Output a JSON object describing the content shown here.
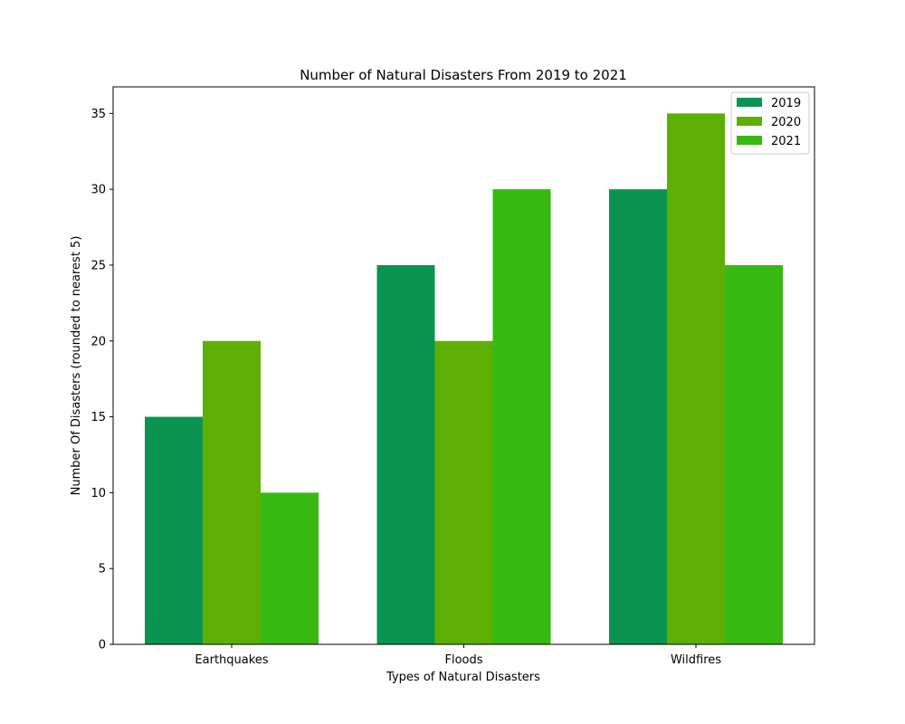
{
  "chart_data": {
    "type": "bar",
    "title": "Number of Natural Disasters From 2019 to 2021",
    "xlabel": "Types of Natural Disasters",
    "ylabel": "Number Of Disasters (rounded to nearest 5)",
    "categories": [
      "Earthquakes",
      "Floods",
      "Wildfires"
    ],
    "series": [
      {
        "name": "2019",
        "values": [
          15,
          25,
          30
        ],
        "color": "#0a9450"
      },
      {
        "name": "2020",
        "values": [
          20,
          20,
          35
        ],
        "color": "#5eaf03"
      },
      {
        "name": "2021",
        "values": [
          10,
          30,
          25
        ],
        "color": "#36b911"
      }
    ],
    "ylim": [
      0,
      36.75
    ],
    "yticks": [
      0,
      5,
      10,
      15,
      20,
      25,
      30,
      35
    ],
    "grid": false,
    "legend_position": "top-right"
  }
}
